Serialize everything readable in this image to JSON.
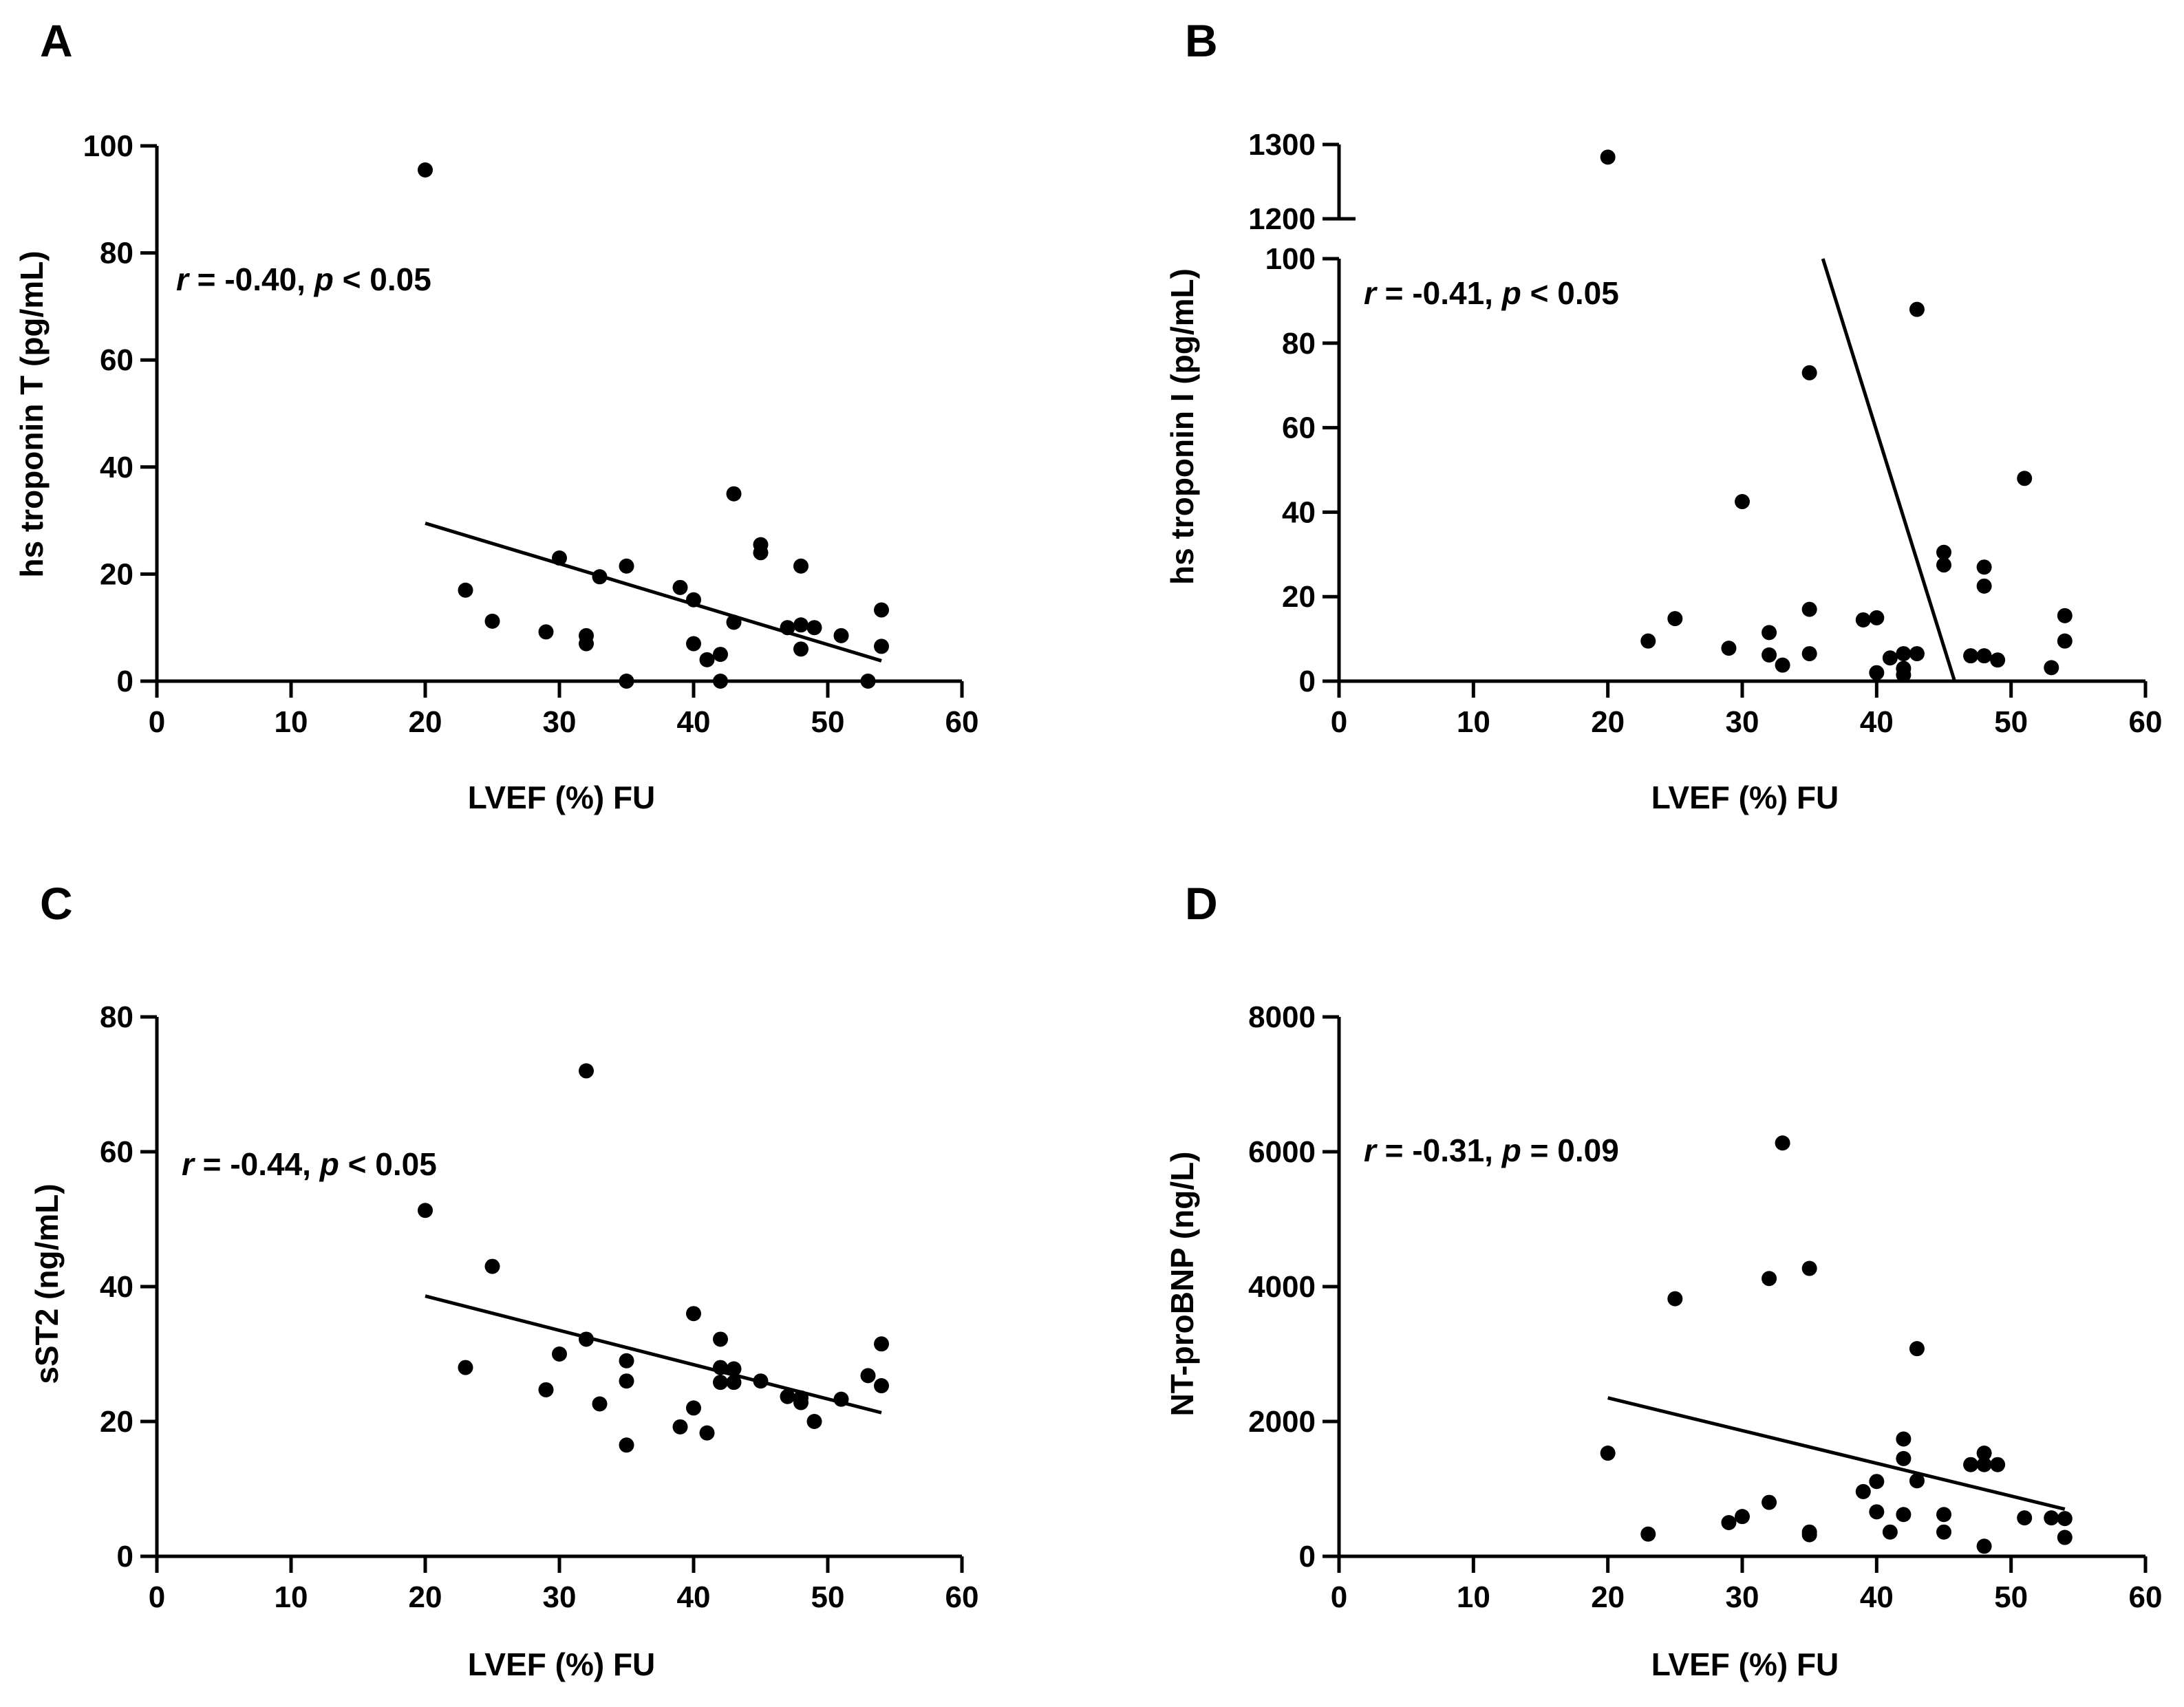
{
  "chart_data": [
    {
      "type": "scatter",
      "panel": "A",
      "xlabel": "LVEF (%) FU",
      "ylabel": "hs troponin T (pg/mL)",
      "xlim": [
        0,
        60
      ],
      "ylim": [
        0,
        100
      ],
      "xticks": [
        0,
        10,
        20,
        30,
        40,
        50,
        60
      ],
      "yticks": [
        0,
        20,
        40,
        60,
        80,
        100
      ],
      "annotation": {
        "r_label": "r",
        "r_text": " = -0.40, ",
        "p_label": "p",
        "p_text": " < 0.05"
      },
      "fit": {
        "x": [
          20,
          54
        ],
        "y": [
          29.5,
          3.8
        ]
      },
      "points": [
        [
          20,
          95.5
        ],
        [
          23,
          17
        ],
        [
          25,
          11.2
        ],
        [
          29,
          9.2
        ],
        [
          30,
          23
        ],
        [
          32,
          8.5
        ],
        [
          32,
          7
        ],
        [
          33,
          19.5
        ],
        [
          35,
          21.5
        ],
        [
          35,
          0
        ],
        [
          39,
          17.5
        ],
        [
          40,
          15.2
        ],
        [
          40,
          7
        ],
        [
          41,
          4
        ],
        [
          42,
          5
        ],
        [
          42,
          0
        ],
        [
          43,
          35
        ],
        [
          43,
          11
        ],
        [
          45,
          25.5
        ],
        [
          45,
          24
        ],
        [
          47,
          10
        ],
        [
          48,
          21.5
        ],
        [
          48,
          10.5
        ],
        [
          48,
          6
        ],
        [
          49,
          10
        ],
        [
          51,
          8.5
        ],
        [
          53,
          0
        ],
        [
          54,
          13.3
        ],
        [
          54,
          6.5
        ]
      ]
    },
    {
      "type": "scatter",
      "panel": "B",
      "xlabel": "LVEF (%) FU",
      "ylabel": "hs troponin I (pg/mL)",
      "xlim": [
        0,
        60
      ],
      "ylim": [
        0,
        100
      ],
      "ylim_upper_segment": [
        1200,
        1300
      ],
      "axis_break": true,
      "xticks": [
        0,
        10,
        20,
        30,
        40,
        50,
        60
      ],
      "yticks": [
        0,
        20,
        40,
        60,
        80,
        100
      ],
      "yticks_upper_segment": [
        1200,
        1300
      ],
      "annotation": {
        "r_label": "r",
        "r_text": " = -0.41, ",
        "p_label": "p",
        "p_text": " < 0.05"
      },
      "fit": {
        "x": [
          36,
          45.8
        ],
        "y": [
          100,
          0
        ]
      },
      "points": [
        [
          20,
          1283
        ],
        [
          23,
          9.5
        ],
        [
          25,
          14.8
        ],
        [
          29,
          7.8
        ],
        [
          30,
          42.5
        ],
        [
          32,
          11.5
        ],
        [
          32,
          6.2
        ],
        [
          33,
          3.8
        ],
        [
          35,
          73
        ],
        [
          35,
          17
        ],
        [
          35,
          6.5
        ],
        [
          39,
          14.5
        ],
        [
          40,
          15
        ],
        [
          40,
          2
        ],
        [
          41,
          5.5
        ],
        [
          42,
          6.5
        ],
        [
          42,
          3
        ],
        [
          42,
          1.5
        ],
        [
          43,
          88
        ],
        [
          43,
          6.5
        ],
        [
          45,
          30.5
        ],
        [
          45,
          27.5
        ],
        [
          47,
          6
        ],
        [
          48,
          27
        ],
        [
          48,
          22.5
        ],
        [
          48,
          6
        ],
        [
          49,
          5
        ],
        [
          51,
          48
        ],
        [
          53,
          3.2
        ],
        [
          54,
          15.5
        ],
        [
          54,
          9.5
        ]
      ]
    },
    {
      "type": "scatter",
      "panel": "C",
      "xlabel": "LVEF (%) FU",
      "ylabel": "sST2 (ng/mL)",
      "xlim": [
        0,
        60
      ],
      "ylim": [
        0,
        80
      ],
      "xticks": [
        0,
        10,
        20,
        30,
        40,
        50,
        60
      ],
      "yticks": [
        0,
        20,
        40,
        60,
        80
      ],
      "annotation": {
        "r_label": "r",
        "r_text": " = -0.44, ",
        "p_label": "p",
        "p_text": " < 0.05"
      },
      "fit": {
        "x": [
          20,
          54
        ],
        "y": [
          38.6,
          21.3
        ]
      },
      "points": [
        [
          20,
          51.3
        ],
        [
          23,
          28
        ],
        [
          25,
          43
        ],
        [
          29,
          24.7
        ],
        [
          30,
          30
        ],
        [
          32,
          72
        ],
        [
          32,
          32.2
        ],
        [
          33,
          22.6
        ],
        [
          35,
          29
        ],
        [
          35,
          26
        ],
        [
          35,
          16.5
        ],
        [
          39,
          19.2
        ],
        [
          40,
          36
        ],
        [
          40,
          22
        ],
        [
          41,
          18.3
        ],
        [
          42,
          32.2
        ],
        [
          42,
          28
        ],
        [
          42,
          25.8
        ],
        [
          43,
          27.8
        ],
        [
          43,
          25.8
        ],
        [
          45,
          26
        ],
        [
          47,
          23.7
        ],
        [
          48,
          23.5
        ],
        [
          48,
          22.8
        ],
        [
          49,
          20
        ],
        [
          51,
          23.3
        ],
        [
          53,
          26.8
        ],
        [
          54,
          31.5
        ],
        [
          54,
          25.3
        ]
      ]
    },
    {
      "type": "scatter",
      "panel": "D",
      "xlabel": "LVEF (%) FU",
      "ylabel": "NT-proBNP (ng/L)",
      "xlim": [
        0,
        60
      ],
      "ylim": [
        0,
        8000
      ],
      "xticks": [
        0,
        10,
        20,
        30,
        40,
        50,
        60
      ],
      "yticks": [
        0,
        2000,
        4000,
        6000,
        8000
      ],
      "annotation": {
        "r_label": "r",
        "r_text": " = -0.31, ",
        "p_label": "p",
        "p_text": " = 0.09"
      },
      "fit": {
        "x": [
          20,
          54
        ],
        "y": [
          2350,
          700
        ]
      },
      "points": [
        [
          20,
          1530
        ],
        [
          23,
          330
        ],
        [
          25,
          3820
        ],
        [
          29,
          500
        ],
        [
          30,
          590
        ],
        [
          32,
          4120
        ],
        [
          32,
          800
        ],
        [
          33,
          6130
        ],
        [
          35,
          4270
        ],
        [
          35,
          360
        ],
        [
          35,
          320
        ],
        [
          39,
          960
        ],
        [
          40,
          1110
        ],
        [
          40,
          660
        ],
        [
          41,
          360
        ],
        [
          42,
          1740
        ],
        [
          42,
          1450
        ],
        [
          42,
          620
        ],
        [
          43,
          3080
        ],
        [
          43,
          1120
        ],
        [
          45,
          620
        ],
        [
          45,
          360
        ],
        [
          47,
          1360
        ],
        [
          48,
          1530
        ],
        [
          48,
          1360
        ],
        [
          48,
          150
        ],
        [
          49,
          1360
        ],
        [
          51,
          570
        ],
        [
          53,
          570
        ],
        [
          54,
          560
        ],
        [
          54,
          280
        ]
      ]
    }
  ]
}
